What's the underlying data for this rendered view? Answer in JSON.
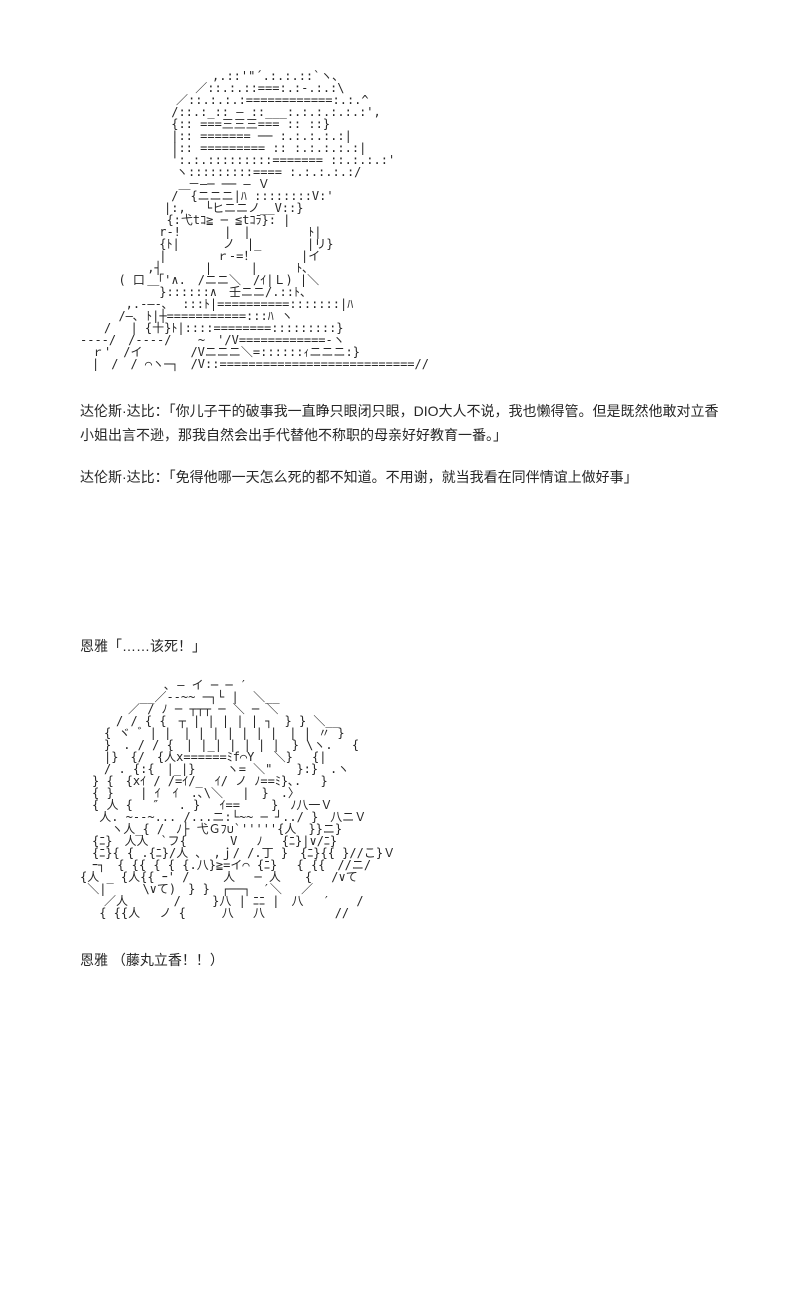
{
  "ascii1": "　　　　　　　　　　　,.::'\"´.:.:.::`ヽ､\n　　　　　　　　　 ／::.:.::===:.:-.:.:\\\n　　　　　　　　／::.:.:.:============:.:.^\n　　　　　　　 /::.:_:: ― ::___:.:.:.:.:.:',\n　　　　　　　 {:: ===三三三=== :: ::}\n　　　　　　　 |:: ======= ── :.:.:.:.:|\n　　　　　　　 |:: ========= :: :.:.:.:.:|\n　　　　　　　 ':.:.:::::::::======= ::.:.:.:'\n　　　　　　　　ヽ:::::::::==== :.:.:.:.:/\n　　　　　　　　　－―─ ── ― Ｖ\n　　　　　　　 /￣{ニニニ|ﾊ ::::::::V:'\n　　　　　　　|:,　 └ヒニニノ__V::}\n　　　　　 　 {:弋tｺ≧ ─ ≦tｺﾗ}: |\n　　　　　　 r-!　　　 |　|　 　 　 ﾄ|\n　　　　　　 {ﾄ|　　　 ノ　|_ 　 　 |リ}\n　　　　　　 |　　 　 ｒ-=！ 　 　 |イ\n　　　　　 ,┤　　　 |　 　 | 　　 ﾄ､\n　 　 ( 口 「'∧.　/ニニ＼　/ｲ|Ｌ) |＼\n　　　　　 ￣}::::::∧　壬ニニ/.::ﾄ、\n 　 　 ,.-―-､  :::ﾄ|==========:::::::|ﾊ\n　 　 /―､ ﾄ|┼===========:::ﾊ ヽ\n　　/　 | {十}ﾄ|::::========:::::::::}\n----/　/----/ 　 ~　'/V============-ヽ\n　ｒ'　/イ　　　　/Vニニニ＼=::::::ｨニニニ:}\n　|　/　/ ⌒ヽ─┐　/V::===========================//",
  "dialogue1": "达伦斯·达比：「你儿子干的破事我一直睁只眼闭只眼，DIO大人不说，我也懒得管。但是既然他敢对立香小姐出言不逊，那我自然会出手代替他不称职的母亲好好教育一番。」",
  "dialogue2": "达伦斯·达比：「免得他哪一天怎么死的都不知道。不用谢，就当我看在同伴情谊上做好事」",
  "dialogue3": "恩雅「……该死！」",
  "ascii2": "　　　　　　　､ ― イ ─ ─ ′\n　　　　　__／--~~ ─┐└ |  ＼__\n　　　　／ / ﾉ ─ ┬┬┬ ─ ＼ ─ ＼\n　　　/ / { {　┬ | | | | | ┐　} } ＼__\n　　{ ヾ ゛| |　| | | | | | |　| | 〃 }\n　　}　. / / {　| |_| | | | |　} \\ヽ.　 {\n　　|}　{/　{人x======ﾐf⌒Y　 ＼}　 {|\n　　/ . {:{　|_|}　　 ヽ= ＼\"　　}:}　.ヽ\n　} {　{xｲ / /=ｲ/_　ｲ/ ノ ﾉ==ﾐ}､.　 }\n　{ } 　 | ｲ　ｲ　.､\\＼　 |　}　.〉\n　{ 人 {　 ″　 . }　 ｲ==　　 }　ﾉ八一Ｖ\n　 人. ~--~... /...ニ:└~~ ─ ┘../ }　八ニＶ\n　　 ヽ人_{ /　ﾉ├ 弋Ｇﾌ∪`'''''{人　}}ニ}\n　{ﾆ}　人人　`フ{　　　 V　 ﾉ　 {ﾆ}|∨/ﾆ}\n　{ﾆ}{ { .{ﾆ}/人 ､　,ｊ/ /.丁 }　{ﾆ}{{ }//こ}Ｖ\n　ｰ┐　{ {{ { { {.八}≧=イ⌒ {ﾆ}　 { {{　//ニ/\n{人 _ {人{{ ｰ' /　   人　 ─ 人　　{　 /∨て\n ＼|　　　\\∨て)　} }　┌──┐　′＼　 ／\n　　／人　　   /　　 }八 | ﾆﾆ |　八　 ′　  /\n　 { {{人　 ノ {　　　八 　八   　　　　//",
  "dialogue4": "恩雅 （藤丸立香！！）"
}
